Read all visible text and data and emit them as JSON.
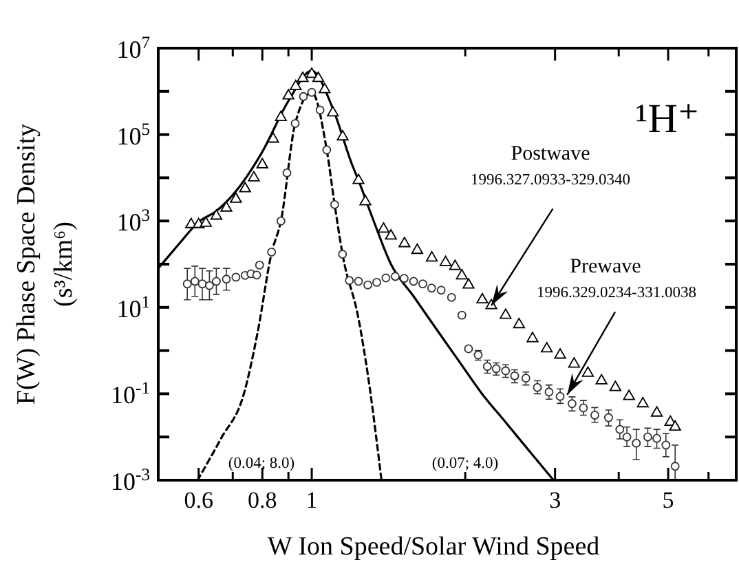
{
  "chart_data": {
    "type": "scatter",
    "xlabel": "W  Ion Speed/Solar Wind Speed",
    "ylabel": "F(W)   Phase Space Density\n(s³/km⁶)",
    "log": "xy",
    "xlim": [
      0.5,
      6.8
    ],
    "xticks": [
      0.6,
      {
        "value": 0.7,
        "label": null
      },
      0.8,
      {
        "value": 0.9,
        "label": null
      },
      1,
      {
        "value": 2,
        "label": null
      },
      3,
      {
        "value": 4,
        "label": null
      },
      5,
      {
        "value": 6,
        "label": null
      }
    ],
    "ylim": [
      0.001,
      10000000
    ],
    "yticks": [
      {
        "value": 0.001,
        "label": "10$^{-3}$"
      },
      {
        "value": 0.01,
        "label": null
      },
      {
        "value": 0.1,
        "label": "10$^{-1}$"
      },
      {
        "value": 1,
        "label": null
      },
      {
        "value": 10,
        "label": "10$^{1}$"
      },
      {
        "value": 100,
        "label": null
      },
      {
        "value": 1000,
        "label": "10$^{3}$"
      },
      {
        "value": 10000,
        "label": null
      },
      {
        "value": 100000,
        "label": "10$^{5}$"
      },
      {
        "value": 1000000,
        "label": null
      },
      {
        "value": 10000000,
        "label": "10$^{7}$"
      }
    ],
    "annotations": [
      "¹H⁺",
      "Postwave",
      {
        "text": "1996.327.0933-329.0340",
        "x": 2.25,
        "y": 11
      },
      "Prewave",
      {
        "text": "1996.329.0234-331.0038",
        "x": 3.17,
        "y": 0.095
      },
      "(0.04; 8.0)",
      "(0.07; 4.0)"
    ],
    "series": [
      {
        "type": "line",
        "line_style": "solid",
        "color": "#000000",
        "x": [
          0.5,
          0.55,
          0.6,
          0.65,
          0.7,
          0.8,
          0.9,
          1.0,
          1.1,
          1.2,
          1.235,
          1.315,
          1.43,
          1.584,
          1.757,
          1.948,
          2.16,
          2.4,
          2.66,
          2.98
        ],
        "values": [
          80,
          300,
          950,
          1700,
          4000,
          40000,
          600000,
          3000000,
          400000,
          20000,
          8700,
          1200,
          100,
          18,
          3.1,
          0.55,
          0.098,
          0.022,
          0.005,
          0.001
        ]
      },
      {
        "type": "line",
        "line_style": "dashed",
        "color": "#000000",
        "x": [
          0.597,
          0.664,
          0.736,
          0.783,
          0.834,
          0.87,
          0.928,
          1.0,
          1.07,
          1.109,
          1.149,
          1.235,
          1.288,
          1.37
        ],
        "values": [
          0.001,
          0.0093,
          0.1,
          2.6,
          180,
          1000,
          180000,
          950000,
          44000,
          2400,
          170,
          5.5,
          0.28,
          0.001
        ]
      },
      {
        "marker": "triangle",
        "color": "#000000",
        "x": [
          0.58,
          0.6,
          0.62,
          0.65,
          0.68,
          0.71,
          0.74,
          0.77,
          0.8,
          0.84,
          0.87,
          0.9,
          0.93,
          0.96,
          1.0,
          1.03,
          1.06,
          1.1,
          1.15,
          1.235,
          1.274,
          1.383,
          1.43,
          1.52,
          1.61,
          1.72,
          1.83,
          1.91,
          1.97,
          2.03,
          2.16,
          2.25,
          2.4,
          2.55,
          2.71,
          2.89,
          3.07,
          3.27,
          3.48,
          3.7,
          3.94,
          4.19,
          4.46,
          4.75,
          5.05,
          5.16
        ],
        "values": [
          830,
          830,
          890,
          1300,
          2000,
          3200,
          5600,
          10000,
          20000,
          79000,
          250000,
          790000,
          1300000,
          2000000,
          2500000,
          2000000,
          1100000,
          320000,
          89000,
          8700,
          2800,
          650,
          450,
          300,
          210,
          140,
          110,
          89,
          54,
          33,
          15,
          11,
          6.6,
          4.0,
          1.9,
          1.1,
          0.79,
          0.49,
          0.3,
          0.2,
          0.14,
          0.087,
          0.059,
          0.036,
          0.022,
          0.017
        ]
      },
      {
        "marker": "circle",
        "color": "#333333",
        "x": [
          0.57,
          0.59,
          0.61,
          0.63,
          0.65,
          0.68,
          0.71,
          0.74,
          0.76,
          0.78,
          0.79,
          0.834,
          0.87,
          0.894,
          0.928,
          0.963,
          1.0,
          1.038,
          1.07,
          1.109,
          1.149,
          1.185,
          1.235,
          1.288,
          1.341,
          1.398,
          1.458,
          1.518,
          1.584,
          1.651,
          1.718,
          1.794,
          1.88,
          1.97,
          2.03,
          2.12,
          2.21,
          2.3,
          2.4,
          2.5,
          2.63,
          2.77,
          2.92,
          3.07,
          3.24,
          3.41,
          3.59,
          3.82,
          4.02,
          4.15,
          4.33,
          4.56,
          4.75,
          4.95,
          5.16
        ],
        "values": [
          35,
          40,
          35,
          32,
          40,
          45,
          50,
          55,
          60,
          56,
          95,
          190,
          1000,
          13000,
          180000,
          760000,
          950000,
          370000,
          44000,
          2400,
          170,
          42,
          40,
          33,
          38,
          48,
          52,
          47,
          40,
          35,
          28,
          25,
          17,
          6.6,
          1.1,
          0.79,
          0.43,
          0.38,
          0.34,
          0.26,
          0.23,
          0.14,
          0.11,
          0.087,
          0.059,
          0.047,
          0.032,
          0.028,
          0.015,
          0.01,
          0.0072,
          0.01,
          0.0093,
          0.0065,
          0.0021
        ],
        "errors": [
          [
            15,
            80
          ],
          [
            18,
            90
          ],
          [
            15,
            80
          ],
          [
            15,
            70
          ],
          [
            20,
            80
          ],
          [
            25,
            80
          ],
          null,
          null,
          null,
          null,
          null,
          null,
          null,
          null,
          null,
          null,
          null,
          null,
          null,
          null,
          null,
          null,
          null,
          null,
          null,
          null,
          null,
          null,
          null,
          null,
          null,
          null,
          null,
          null,
          null,
          [
            0.6,
            1.0
          ],
          [
            0.3,
            0.6
          ],
          [
            0.27,
            0.52
          ],
          [
            0.24,
            0.47
          ],
          [
            0.18,
            0.36
          ],
          [
            0.16,
            0.32
          ],
          [
            0.1,
            0.2
          ],
          [
            0.075,
            0.16
          ],
          [
            0.06,
            0.13
          ],
          [
            0.04,
            0.085
          ],
          [
            0.032,
            0.07
          ],
          [
            0.022,
            0.048
          ],
          [
            0.018,
            0.042
          ],
          [
            0.009,
            0.025
          ],
          [
            0.006,
            0.017
          ],
          [
            0.003,
            0.015
          ],
          [
            0.006,
            0.016
          ],
          [
            0.0055,
            0.015
          ],
          [
            0.0035,
            0.012
          ],
          [
            0.001,
            0.0065
          ]
        ]
      }
    ]
  }
}
